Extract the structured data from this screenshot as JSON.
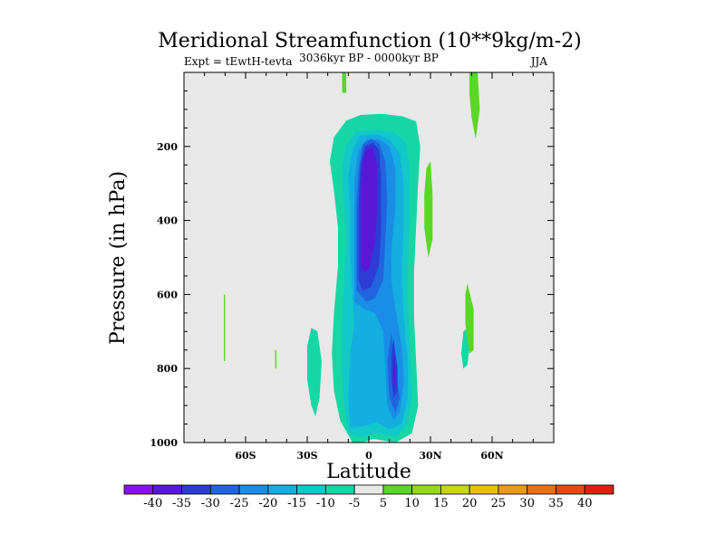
{
  "chart_data": {
    "type": "contour",
    "title": "Meridional Streamfunction (10**9kg/m-2)",
    "left_label": "Expt = tEwtH-tevta",
    "center_label": "3036kyr BP - 0000kyr BP",
    "right_label": "JJA",
    "xlabel": "Latitude",
    "ylabel": "Pressure (in hPa)",
    "xlim": [
      -90,
      90
    ],
    "ylim": [
      1000,
      0
    ],
    "xticks": [
      {
        "value": -60,
        "label": "60S"
      },
      {
        "value": -30,
        "label": "30S"
      },
      {
        "value": 0,
        "label": "0"
      },
      {
        "value": 30,
        "label": "30N"
      },
      {
        "value": 60,
        "label": "60N"
      }
    ],
    "yticks": [
      {
        "value": 200,
        "label": "200"
      },
      {
        "value": 400,
        "label": "400"
      },
      {
        "value": 600,
        "label": "600"
      },
      {
        "value": 800,
        "label": "800"
      },
      {
        "value": 1000,
        "label": "1000"
      }
    ],
    "colorbar": {
      "labels": [
        "-40",
        "-35",
        "-30",
        "-25",
        "-20",
        "-15",
        "-10",
        "-5",
        "5",
        "10",
        "15",
        "20",
        "25",
        "30",
        "35",
        "40"
      ],
      "colors": [
        "#8a12e6",
        "#5818d8",
        "#2c3cd4",
        "#2164e0",
        "#1a8ee6",
        "#14aee0",
        "#12c8c8",
        "#16d6a6",
        "#e8e8e8",
        "#5ad626",
        "#96d81c",
        "#c8d41a",
        "#e6c018",
        "#e89a18",
        "#e67016",
        "#e44a12",
        "#d82410"
      ]
    },
    "regions": [
      {
        "level": -5,
        "points": [
          [
            -8,
            1000
          ],
          [
            -14,
            940
          ],
          [
            -17,
            860
          ],
          [
            -18,
            760
          ],
          [
            -17,
            650
          ],
          [
            -15,
            520
          ],
          [
            -15,
            420
          ],
          [
            -17,
            320
          ],
          [
            -19,
            240
          ],
          [
            -17,
            175
          ],
          [
            -11,
            130
          ],
          [
            -4,
            115
          ],
          [
            6,
            112
          ],
          [
            16,
            118
          ],
          [
            23,
            132
          ],
          [
            25,
            200
          ],
          [
            24,
            300
          ],
          [
            23,
            420
          ],
          [
            22,
            540
          ],
          [
            22,
            660
          ],
          [
            23,
            780
          ],
          [
            24,
            900
          ],
          [
            21,
            975
          ],
          [
            13,
            1000
          ],
          [
            2,
            990
          ],
          [
            -3,
            1000
          ]
        ]
      },
      {
        "level": -5,
        "points": [
          [
            -25,
            700
          ],
          [
            -28,
            690
          ],
          [
            -30,
            740
          ],
          [
            -30,
            830
          ],
          [
            -28,
            900
          ],
          [
            -26,
            930
          ],
          [
            -24,
            880
          ],
          [
            -23,
            780
          ]
        ]
      },
      {
        "level": -5,
        "points": [
          [
            46,
            700
          ],
          [
            45,
            760
          ],
          [
            46,
            800
          ],
          [
            48,
            790
          ],
          [
            49,
            740
          ],
          [
            48,
            690
          ]
        ]
      },
      {
        "level": -10,
        "points": [
          [
            -10,
            975
          ],
          [
            -12,
            900
          ],
          [
            -13,
            800
          ],
          [
            -13,
            680
          ],
          [
            -12,
            560
          ],
          [
            -11,
            450
          ],
          [
            -12,
            350
          ],
          [
            -13,
            260
          ],
          [
            -11,
            195
          ],
          [
            -6,
            160
          ],
          [
            4,
            155
          ],
          [
            12,
            160
          ],
          [
            18,
            190
          ],
          [
            20,
            260
          ],
          [
            20,
            380
          ],
          [
            19,
            500
          ],
          [
            19,
            620
          ],
          [
            20,
            740
          ],
          [
            21,
            860
          ],
          [
            19,
            950
          ],
          [
            13,
            985
          ],
          [
            4,
            975
          ],
          [
            -4,
            985
          ]
        ]
      },
      {
        "level": -15,
        "points": [
          [
            -9,
            960
          ],
          [
            -10,
            880
          ],
          [
            -9,
            760
          ],
          [
            -7,
            680
          ],
          [
            -8,
            600
          ],
          [
            -9,
            500
          ],
          [
            -9,
            380
          ],
          [
            -10,
            280
          ],
          [
            -8,
            210
          ],
          [
            -4,
            170
          ],
          [
            4,
            168
          ],
          [
            10,
            180
          ],
          [
            15,
            220
          ],
          [
            17,
            300
          ],
          [
            17,
            420
          ],
          [
            16,
            540
          ],
          [
            17,
            660
          ],
          [
            19,
            780
          ],
          [
            19,
            880
          ],
          [
            16,
            950
          ],
          [
            10,
            965
          ],
          [
            4,
            945
          ],
          [
            -2,
            955
          ]
        ]
      },
      {
        "level": -20,
        "points": [
          [
            -7,
            620
          ],
          [
            -7,
            520
          ],
          [
            -7,
            400
          ],
          [
            -7,
            290
          ],
          [
            -5,
            210
          ],
          [
            -1,
            180
          ],
          [
            5,
            180
          ],
          [
            10,
            200
          ],
          [
            13,
            260
          ],
          [
            13,
            360
          ],
          [
            11,
            480
          ],
          [
            11,
            560
          ],
          [
            13,
            640
          ],
          [
            16,
            740
          ],
          [
            17,
            840
          ],
          [
            15,
            920
          ],
          [
            12,
            940
          ],
          [
            9,
            900
          ],
          [
            8,
            800
          ],
          [
            7,
            700
          ],
          [
            3,
            650
          ],
          [
            -2,
            640
          ]
        ]
      },
      {
        "level": -25,
        "points": [
          [
            -6,
            590
          ],
          [
            -6,
            480
          ],
          [
            -6,
            360
          ],
          [
            -5,
            260
          ],
          [
            -3,
            195
          ],
          [
            1,
            180
          ],
          [
            5,
            190
          ],
          [
            8,
            240
          ],
          [
            9,
            340
          ],
          [
            8,
            460
          ],
          [
            7,
            560
          ],
          [
            3,
            610
          ],
          [
            -1,
            620
          ]
        ]
      },
      {
        "level": -25,
        "points": [
          [
            11,
            700
          ],
          [
            13,
            800
          ],
          [
            15,
            880
          ],
          [
            13,
            920
          ],
          [
            10,
            880
          ],
          [
            9,
            780
          ]
        ]
      },
      {
        "level": -30,
        "points": [
          [
            -5,
            560
          ],
          [
            -5,
            460
          ],
          [
            -5,
            350
          ],
          [
            -4,
            250
          ],
          [
            -2,
            200
          ],
          [
            2,
            190
          ],
          [
            5,
            210
          ],
          [
            6,
            300
          ],
          [
            6,
            420
          ],
          [
            5,
            520
          ],
          [
            1,
            580
          ],
          [
            -3,
            590
          ]
        ]
      },
      {
        "level": -30,
        "points": [
          [
            12,
            720
          ],
          [
            14,
            800
          ],
          [
            14,
            860
          ],
          [
            12,
            880
          ],
          [
            11,
            820
          ],
          [
            11,
            760
          ]
        ]
      },
      {
        "level": -35,
        "points": [
          [
            -4,
            520
          ],
          [
            -4,
            420
          ],
          [
            -4,
            320
          ],
          [
            -3,
            240
          ],
          [
            -1,
            205
          ],
          [
            2,
            205
          ],
          [
            4,
            250
          ],
          [
            4,
            360
          ],
          [
            3,
            460
          ],
          [
            0,
            530
          ],
          [
            -2,
            540
          ]
        ]
      },
      {
        "level": -35,
        "points": [
          [
            12,
            750
          ],
          [
            13,
            810
          ],
          [
            13,
            840
          ],
          [
            12,
            850
          ],
          [
            12,
            800
          ]
        ]
      },
      {
        "level": 5,
        "points": [
          [
            -13,
            0
          ],
          [
            -11,
            0
          ],
          [
            -11,
            55
          ],
          [
            -13,
            55
          ]
        ]
      },
      {
        "level": 5,
        "points": [
          [
            49,
            0
          ],
          [
            53,
            0
          ],
          [
            54,
            100
          ],
          [
            52,
            180
          ],
          [
            50,
            120
          ],
          [
            49,
            60
          ]
        ]
      },
      {
        "level": 5,
        "points": [
          [
            28,
            260
          ],
          [
            27,
            330
          ],
          [
            27,
            420
          ],
          [
            29,
            500
          ],
          [
            31,
            450
          ],
          [
            31,
            330
          ],
          [
            30,
            240
          ]
        ]
      },
      {
        "level": 5,
        "points": [
          [
            47,
            600
          ],
          [
            47,
            680
          ],
          [
            49,
            760
          ],
          [
            51,
            750
          ],
          [
            51,
            640
          ],
          [
            48,
            570
          ]
        ]
      },
      {
        "level": 5,
        "points": [
          [
            -70,
            600
          ],
          [
            -70.6,
            600
          ],
          [
            -70.6,
            780
          ],
          [
            -70,
            780
          ]
        ]
      },
      {
        "level": 5,
        "points": [
          [
            -45,
            750
          ],
          [
            -45.6,
            750
          ],
          [
            -45.6,
            800
          ],
          [
            -45,
            800
          ]
        ]
      }
    ]
  }
}
